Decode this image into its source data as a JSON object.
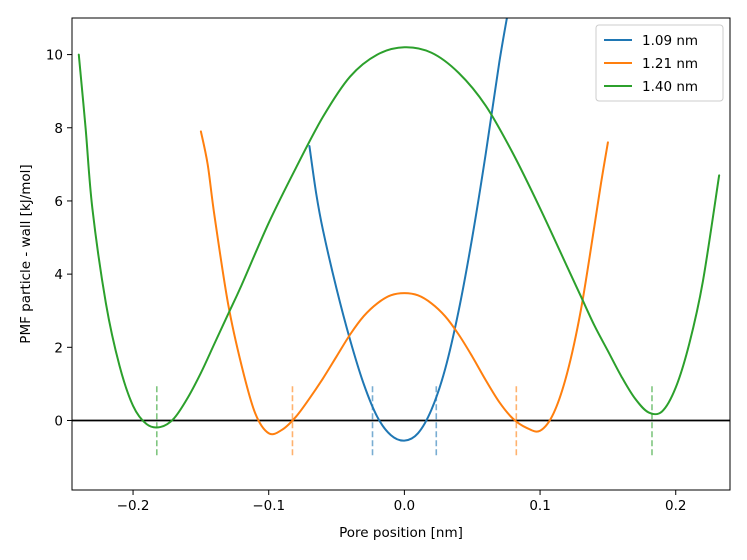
{
  "chart_data": {
    "type": "line",
    "title": "",
    "xlabel": "Pore position [nm]",
    "ylabel": "PMF particle - wall [kJ/mol]",
    "xlim": [
      -0.245,
      0.24
    ],
    "ylim": [
      -1.9,
      11.0
    ],
    "xticks": [
      -0.2,
      -0.1,
      0.0,
      0.1,
      0.2
    ],
    "xtick_labels": [
      "−0.2",
      "−0.1",
      "0.0",
      "0.1",
      "0.2"
    ],
    "yticks": [
      0,
      2,
      4,
      6,
      8,
      10
    ],
    "ytick_labels": [
      "0",
      "2",
      "4",
      "6",
      "8",
      "10"
    ],
    "grid": false,
    "legend_position": "top-right",
    "zero_line": {
      "y": 0,
      "color": "#000000"
    },
    "series": [
      {
        "name": "1.09 nm",
        "color": "#1f77b4",
        "x": [
          -0.07,
          -0.065,
          -0.06,
          -0.05,
          -0.04,
          -0.03,
          -0.02,
          -0.01,
          0.0,
          0.01,
          0.02,
          0.03,
          0.04,
          0.05,
          0.06,
          0.07,
          0.078
        ],
        "y": [
          7.5,
          6.2,
          5.2,
          3.6,
          2.2,
          1.0,
          0.1,
          -0.4,
          -0.55,
          -0.35,
          0.3,
          1.4,
          3.0,
          5.0,
          7.3,
          9.8,
          11.5
        ],
        "marker_lines": [
          -0.0235,
          0.0235
        ]
      },
      {
        "name": "1.21 nm",
        "color": "#ff7f0e",
        "x": [
          -0.15,
          -0.145,
          -0.14,
          -0.13,
          -0.12,
          -0.11,
          -0.1,
          -0.09,
          -0.08,
          -0.07,
          -0.06,
          -0.05,
          -0.04,
          -0.03,
          -0.02,
          -0.01,
          0.0,
          0.01,
          0.02,
          0.03,
          0.04,
          0.05,
          0.06,
          0.07,
          0.08,
          0.09,
          0.1,
          0.11,
          0.12,
          0.13,
          0.14,
          0.145,
          0.15
        ],
        "y": [
          7.9,
          7.0,
          5.6,
          3.2,
          1.5,
          0.2,
          -0.35,
          -0.25,
          0.1,
          0.6,
          1.15,
          1.75,
          2.35,
          2.85,
          3.2,
          3.42,
          3.48,
          3.42,
          3.2,
          2.85,
          2.35,
          1.75,
          1.1,
          0.5,
          0.05,
          -0.2,
          -0.28,
          0.2,
          1.3,
          3.0,
          5.3,
          6.5,
          7.6
        ],
        "marker_lines": [
          -0.0825,
          0.0825
        ]
      },
      {
        "name": "1.40 nm",
        "color": "#2ca02c",
        "x": [
          -0.24,
          -0.235,
          -0.23,
          -0.22,
          -0.21,
          -0.2,
          -0.19,
          -0.18,
          -0.17,
          -0.16,
          -0.15,
          -0.14,
          -0.13,
          -0.12,
          -0.1,
          -0.08,
          -0.06,
          -0.04,
          -0.02,
          0.0,
          0.02,
          0.04,
          0.06,
          0.08,
          0.1,
          0.12,
          0.13,
          0.14,
          0.15,
          0.16,
          0.17,
          0.18,
          0.19,
          0.2,
          0.21,
          0.22,
          0.232
        ],
        "y": [
          10.0,
          8.0,
          5.8,
          3.2,
          1.5,
          0.4,
          -0.1,
          -0.18,
          0.05,
          0.6,
          1.3,
          2.1,
          2.9,
          3.7,
          5.4,
          6.9,
          8.3,
          9.4,
          10.0,
          10.2,
          10.05,
          9.5,
          8.6,
          7.3,
          5.8,
          4.2,
          3.4,
          2.6,
          1.9,
          1.2,
          0.6,
          0.22,
          0.25,
          0.9,
          2.1,
          3.8,
          6.7
        ],
        "marker_lines": [
          -0.1825,
          0.1825
        ]
      }
    ],
    "marker_line_range": [
      -0.95,
      1.0
    ]
  }
}
